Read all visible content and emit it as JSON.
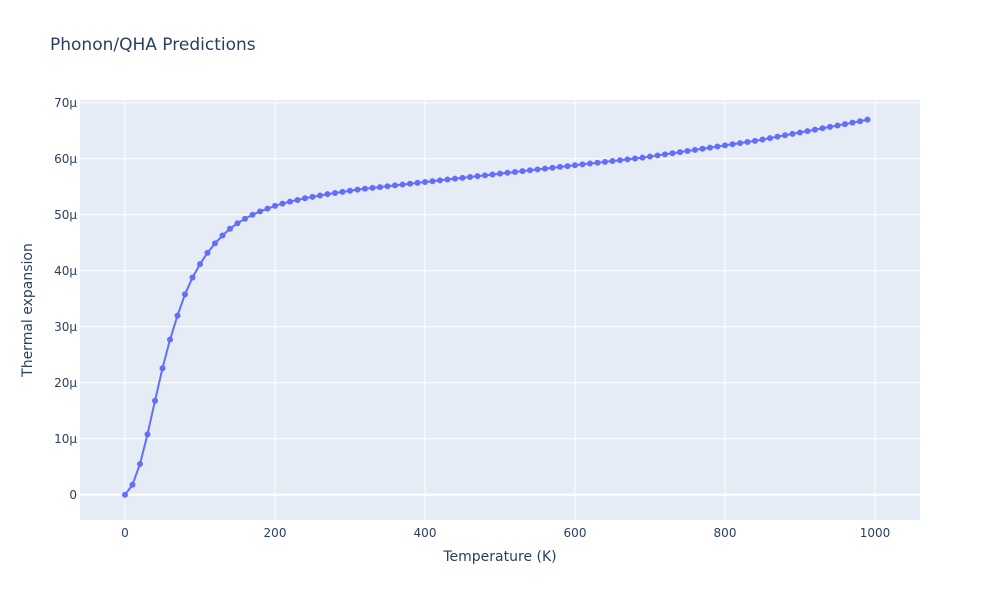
{
  "chart_data": {
    "type": "line",
    "title": "Phonon/QHA Predictions",
    "xlabel": "Temperature (K)",
    "ylabel": "Thermal expansion",
    "xlim": [
      -60,
      1060
    ],
    "ylim": [
      -4.5e-06,
      7.05e-05
    ],
    "x_ticks": [
      0,
      200,
      400,
      600,
      800,
      1000
    ],
    "x_tick_labels": [
      "0",
      "200",
      "400",
      "600",
      "800",
      "1000"
    ],
    "y_ticks": [
      0,
      1e-05,
      2e-05,
      3e-05,
      4e-05,
      5e-05,
      6e-05,
      7e-05
    ],
    "y_tick_labels": [
      "0",
      "10µ",
      "20µ",
      "30µ",
      "40µ",
      "50µ",
      "60µ",
      "70µ"
    ],
    "grid": true,
    "line_color": "#636efa",
    "plot_bg": "#e5ecf6",
    "series": [
      {
        "x": [
          0,
          10,
          20,
          30,
          40,
          50,
          60,
          70,
          80,
          90,
          100,
          110,
          120,
          130,
          140,
          150,
          160,
          170,
          180,
          190,
          200,
          210,
          220,
          230,
          240,
          250,
          260,
          270,
          280,
          290,
          300,
          310,
          320,
          330,
          340,
          350,
          360,
          370,
          380,
          390,
          400,
          410,
          420,
          430,
          440,
          450,
          460,
          470,
          480,
          490,
          500,
          510,
          520,
          530,
          540,
          550,
          560,
          570,
          580,
          590,
          600,
          610,
          620,
          630,
          640,
          650,
          660,
          670,
          680,
          690,
          700,
          710,
          720,
          730,
          740,
          750,
          760,
          770,
          780,
          790,
          800,
          810,
          820,
          830,
          840,
          850,
          860,
          870,
          880,
          890,
          900,
          910,
          920,
          930,
          940,
          950,
          960,
          970,
          980,
          990
        ],
        "y": [
          0,
          1.8e-06,
          5.5e-06,
          1.08e-05,
          1.68e-05,
          2.26e-05,
          2.77e-05,
          3.2e-05,
          3.58e-05,
          3.88e-05,
          4.12e-05,
          4.32e-05,
          4.49e-05,
          4.63e-05,
          4.75e-05,
          4.85e-05,
          4.93e-05,
          5e-05,
          5.06e-05,
          5.11e-05,
          5.16e-05,
          5.2e-05,
          5.235e-05,
          5.265e-05,
          5.295e-05,
          5.32e-05,
          5.345e-05,
          5.37e-05,
          5.39e-05,
          5.41e-05,
          5.43e-05,
          5.45e-05,
          5.465e-05,
          5.48e-05,
          5.495e-05,
          5.51e-05,
          5.525e-05,
          5.54e-05,
          5.555e-05,
          5.57e-05,
          5.585e-05,
          5.6e-05,
          5.615e-05,
          5.63e-05,
          5.645e-05,
          5.66e-05,
          5.675e-05,
          5.69e-05,
          5.705e-05,
          5.72e-05,
          5.735e-05,
          5.75e-05,
          5.765e-05,
          5.78e-05,
          5.795e-05,
          5.81e-05,
          5.825e-05,
          5.84e-05,
          5.855e-05,
          5.87e-05,
          5.885e-05,
          5.9e-05,
          5.915e-05,
          5.93e-05,
          5.945e-05,
          5.96e-05,
          5.975e-05,
          5.99e-05,
          6.005e-05,
          6.02e-05,
          6.04e-05,
          6.06e-05,
          6.08e-05,
          6.1e-05,
          6.12e-05,
          6.14e-05,
          6.16e-05,
          6.18e-05,
          6.2e-05,
          6.22e-05,
          6.24e-05,
          6.26e-05,
          6.28e-05,
          6.3e-05,
          6.32e-05,
          6.345e-05,
          6.37e-05,
          6.395e-05,
          6.42e-05,
          6.445e-05,
          6.47e-05,
          6.495e-05,
          6.52e-05,
          6.545e-05,
          6.57e-05,
          6.595e-05,
          6.62e-05,
          6.645e-05,
          6.67e-05,
          6.7e-05
        ]
      }
    ]
  }
}
